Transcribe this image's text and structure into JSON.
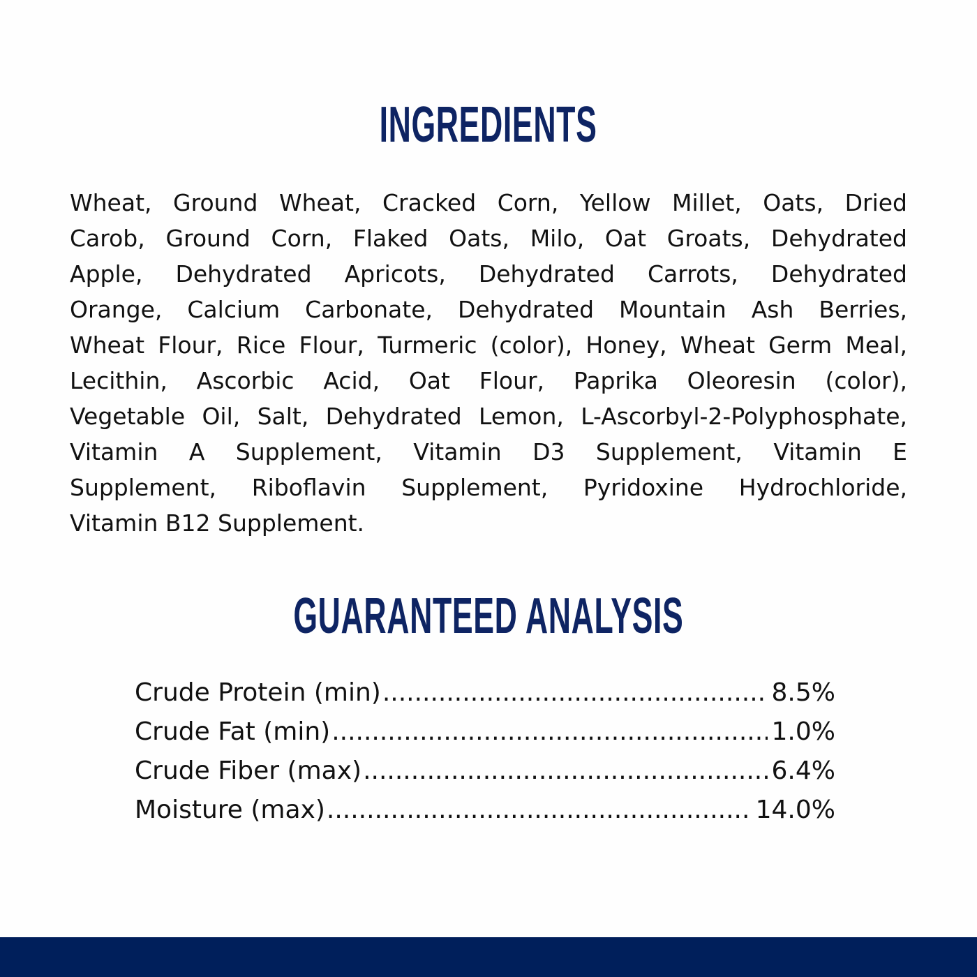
{
  "ingredients": {
    "title": "INGREDIENTS",
    "lines": [
      "Wheat, Ground Wheat, Cracked Corn, Yellow Millet, Oats, Dried",
      "Carob, Ground Corn, Flaked Oats, Milo, Oat Groats, Dehydrated",
      "Apple, Dehydrated Apricots, Dehydrated Carrots, Dehydrated",
      "Orange, Calcium Carbonate, Dehydrated Mountain Ash Berries,",
      "Wheat Flour, Rice Flour, Turmeric (color), Honey, Wheat Germ Meal,",
      "Lecithin, Ascorbic Acid, Oat Flour, Paprika Oleoresin (color),",
      "Vegetable Oil, Salt, Dehydrated Lemon, L-Ascorbyl-2-Polyphosphate,",
      "Vitamin A Supplement, Vitamin D3 Supplement, Vitamin E",
      "Supplement, Riboflavin Supplement, Pyridoxine Hydrochloride,",
      "Vitamin B12 Supplement."
    ]
  },
  "analysis": {
    "title": "GUARANTEED ANALYSIS",
    "rows": [
      {
        "label": "Crude Protein (min)",
        "value": "8.5%"
      },
      {
        "label": "Crude Fat (min)",
        "value": "1.0%"
      },
      {
        "label": "Crude Fiber (max)",
        "value": "6.4%"
      },
      {
        "label": "Moisture (max)",
        "value": "14.0%"
      }
    ]
  },
  "colors": {
    "heading": "#0e2463",
    "footer_bar": "#001f5b",
    "text": "#111111"
  }
}
